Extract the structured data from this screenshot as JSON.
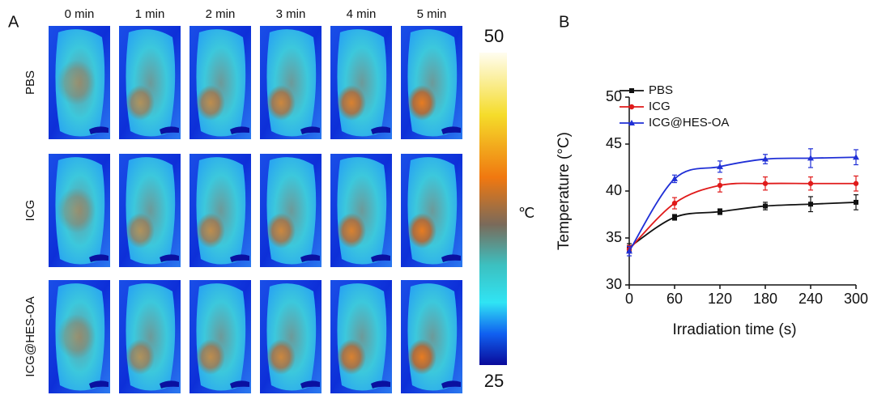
{
  "panel_a": {
    "label": "A",
    "columns": [
      "0 min",
      "1 min",
      "2 min",
      "3 min",
      "4 min",
      "5 min"
    ],
    "rows": [
      "PBS",
      "ICG",
      "ICG@HES-OA"
    ],
    "colorbar": {
      "ylim": [
        25,
        50
      ],
      "yticks": [
        25,
        50
      ],
      "unit": "℃"
    }
  },
  "chart_data": {
    "type": "line",
    "label": "B",
    "x_label": "Irradiation time (s)",
    "y_label": "Temperature (°C)",
    "x": [
      0,
      60,
      120,
      180,
      240,
      300
    ],
    "xlim": [
      0,
      300
    ],
    "xticks": [
      0,
      60,
      120,
      180,
      240,
      300
    ],
    "ylim": [
      30,
      50
    ],
    "yticks": [
      30,
      35,
      40,
      45,
      50
    ],
    "legend": "upper left",
    "series": [
      {
        "name": "PBS",
        "color": "#111111",
        "marker": "square",
        "values": [
          34.0,
          37.2,
          37.8,
          38.4,
          38.6,
          38.8
        ],
        "errors": [
          0.4,
          0.3,
          0.3,
          0.4,
          0.8,
          0.8
        ]
      },
      {
        "name": "ICG",
        "color": "#e01a1a",
        "marker": "circle",
        "values": [
          33.8,
          38.7,
          40.6,
          40.8,
          40.8,
          40.8
        ],
        "errors": [
          0.4,
          0.6,
          0.7,
          0.7,
          0.7,
          0.8
        ]
      },
      {
        "name": "ICG@HES-OA",
        "color": "#1f2fd6",
        "marker": "triangle",
        "values": [
          33.6,
          41.3,
          42.6,
          43.4,
          43.5,
          43.6
        ],
        "errors": [
          0.5,
          0.4,
          0.6,
          0.5,
          1.0,
          0.8
        ]
      }
    ]
  }
}
